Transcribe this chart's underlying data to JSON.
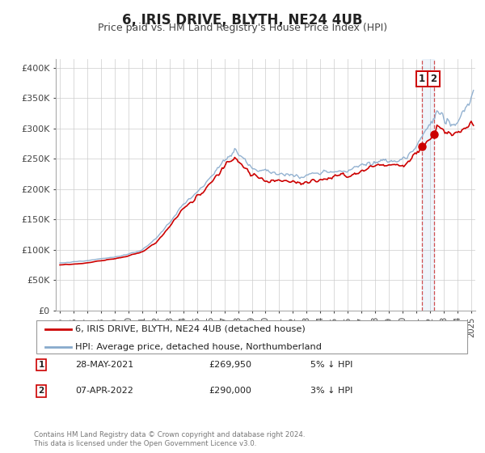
{
  "title": "6, IRIS DRIVE, BLYTH, NE24 4UB",
  "subtitle": "Price paid vs. HM Land Registry's House Price Index (HPI)",
  "background_color": "#ffffff",
  "grid_color": "#cccccc",
  "title_fontsize": 12,
  "subtitle_fontsize": 9,
  "legend_label_red": "6, IRIS DRIVE, BLYTH, NE24 4UB (detached house)",
  "legend_label_blue": "HPI: Average price, detached house, Northumberland",
  "sale1_date_num": 2021.41,
  "sale1_price": 269950,
  "sale1_date_str": "28-MAY-2021",
  "sale1_pct": "5% ↓ HPI",
  "sale2_date_num": 2022.27,
  "sale2_price": 290000,
  "sale2_date_str": "07-APR-2022",
  "sale2_pct": "3% ↓ HPI",
  "red_color": "#cc0000",
  "blue_color": "#88aacc",
  "vline_color": "#cc3333",
  "highlight_color": "#ddeeff",
  "ytick_labels": [
    "£0",
    "£50K",
    "£100K",
    "£150K",
    "£200K",
    "£250K",
    "£300K",
    "£350K",
    "£400K"
  ],
  "ytick_values": [
    0,
    50000,
    100000,
    150000,
    200000,
    250000,
    300000,
    350000,
    400000
  ],
  "ylim": [
    0,
    415000
  ],
  "xlim_start": 1994.7,
  "xlim_end": 2025.3,
  "footer_text": "Contains HM Land Registry data © Crown copyright and database right 2024.\nThis data is licensed under the Open Government Licence v3.0.",
  "xtick_years": [
    1995,
    1996,
    1997,
    1998,
    1999,
    2000,
    2001,
    2002,
    2003,
    2004,
    2005,
    2006,
    2007,
    2008,
    2009,
    2010,
    2011,
    2012,
    2013,
    2014,
    2015,
    2016,
    2017,
    2018,
    2019,
    2020,
    2021,
    2022,
    2023,
    2024,
    2025
  ]
}
